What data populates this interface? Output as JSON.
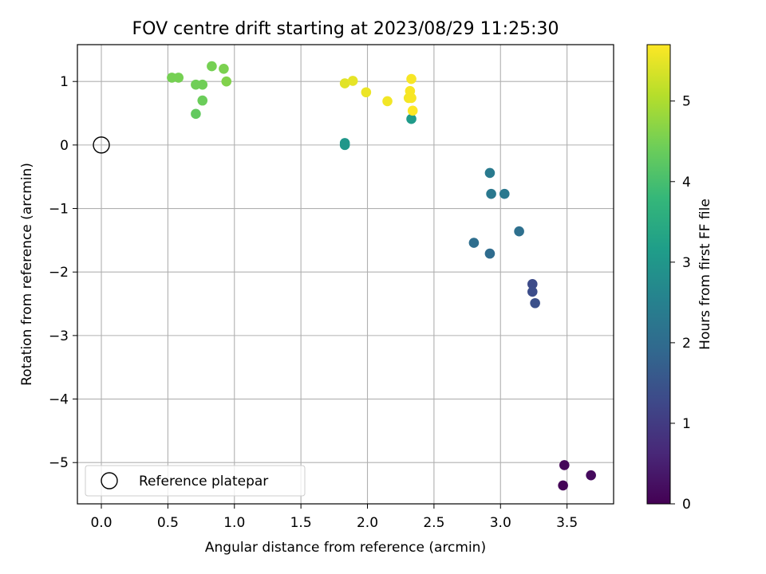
{
  "chart_data": {
    "type": "scatter",
    "title": "FOV centre drift starting at 2023/08/29 11:25:30",
    "xlabel": "Angular distance from reference (arcmin)",
    "ylabel": "Rotation from reference (arcmin)",
    "xlim": [
      -0.18,
      3.85
    ],
    "ylim": [
      -5.65,
      1.58
    ],
    "xticks": [
      0.0,
      0.5,
      1.0,
      1.5,
      2.0,
      2.5,
      3.0,
      3.5
    ],
    "xtick_labels": [
      "0.0",
      "0.5",
      "1.0",
      "1.5",
      "2.0",
      "2.5",
      "3.0",
      "3.5"
    ],
    "yticks": [
      1,
      0,
      -1,
      -2,
      -3,
      -4,
      -5
    ],
    "ytick_labels": [
      "1",
      "0",
      "−1",
      "−2",
      "−3",
      "−4",
      "−5"
    ],
    "grid": true,
    "colormap": "viridis",
    "colorbar": {
      "label": "Hours from first FF file",
      "range": [
        0,
        5.7
      ],
      "ticks": [
        0,
        1,
        2,
        3,
        4,
        5
      ],
      "tick_labels": [
        "0",
        "1",
        "2",
        "3",
        "4",
        "5"
      ]
    },
    "legend": {
      "position": "lower-left",
      "entries": [
        {
          "label": "Reference platepar",
          "marker": "open-circle",
          "color": "#000000"
        }
      ]
    },
    "reference_point": {
      "x": 0.0,
      "y": 0.0
    },
    "points": [
      {
        "x": 3.47,
        "y": -5.36,
        "hours": 0.05
      },
      {
        "x": 3.48,
        "y": -5.04,
        "hours": 0.1
      },
      {
        "x": 3.68,
        "y": -5.2,
        "hours": 0.15
      },
      {
        "x": 3.24,
        "y": -2.19,
        "hours": 1.3
      },
      {
        "x": 3.24,
        "y": -2.31,
        "hours": 1.35
      },
      {
        "x": 3.26,
        "y": -2.49,
        "hours": 1.4
      },
      {
        "x": 2.92,
        "y": -1.71,
        "hours": 2.0
      },
      {
        "x": 2.8,
        "y": -1.54,
        "hours": 2.05
      },
      {
        "x": 3.14,
        "y": -1.36,
        "hours": 2.1
      },
      {
        "x": 2.93,
        "y": -0.77,
        "hours": 2.3
      },
      {
        "x": 3.03,
        "y": -0.77,
        "hours": 2.3
      },
      {
        "x": 2.92,
        "y": -0.44,
        "hours": 2.35
      },
      {
        "x": 1.83,
        "y": 0.03,
        "hours": 3.0
      },
      {
        "x": 1.83,
        "y": 0.0,
        "hours": 3.0
      },
      {
        "x": 2.33,
        "y": 0.41,
        "hours": 3.1
      },
      {
        "x": 0.71,
        "y": 0.49,
        "hours": 4.3
      },
      {
        "x": 0.76,
        "y": 0.7,
        "hours": 4.4
      },
      {
        "x": 0.71,
        "y": 0.95,
        "hours": 4.45
      },
      {
        "x": 0.76,
        "y": 0.95,
        "hours": 4.45
      },
      {
        "x": 0.53,
        "y": 1.06,
        "hours": 4.5
      },
      {
        "x": 0.58,
        "y": 1.06,
        "hours": 4.5
      },
      {
        "x": 0.83,
        "y": 1.24,
        "hours": 4.5
      },
      {
        "x": 0.92,
        "y": 1.2,
        "hours": 4.55
      },
      {
        "x": 0.94,
        "y": 1.0,
        "hours": 4.6
      },
      {
        "x": 1.83,
        "y": 0.97,
        "hours": 5.45
      },
      {
        "x": 1.89,
        "y": 1.01,
        "hours": 5.5
      },
      {
        "x": 1.99,
        "y": 0.83,
        "hours": 5.55
      },
      {
        "x": 2.15,
        "y": 0.69,
        "hours": 5.6
      },
      {
        "x": 2.31,
        "y": 0.74,
        "hours": 5.6
      },
      {
        "x": 2.33,
        "y": 1.04,
        "hours": 5.65
      },
      {
        "x": 2.32,
        "y": 0.85,
        "hours": 5.65
      },
      {
        "x": 2.33,
        "y": 0.74,
        "hours": 5.65
      },
      {
        "x": 2.34,
        "y": 0.54,
        "hours": 5.7
      }
    ]
  }
}
